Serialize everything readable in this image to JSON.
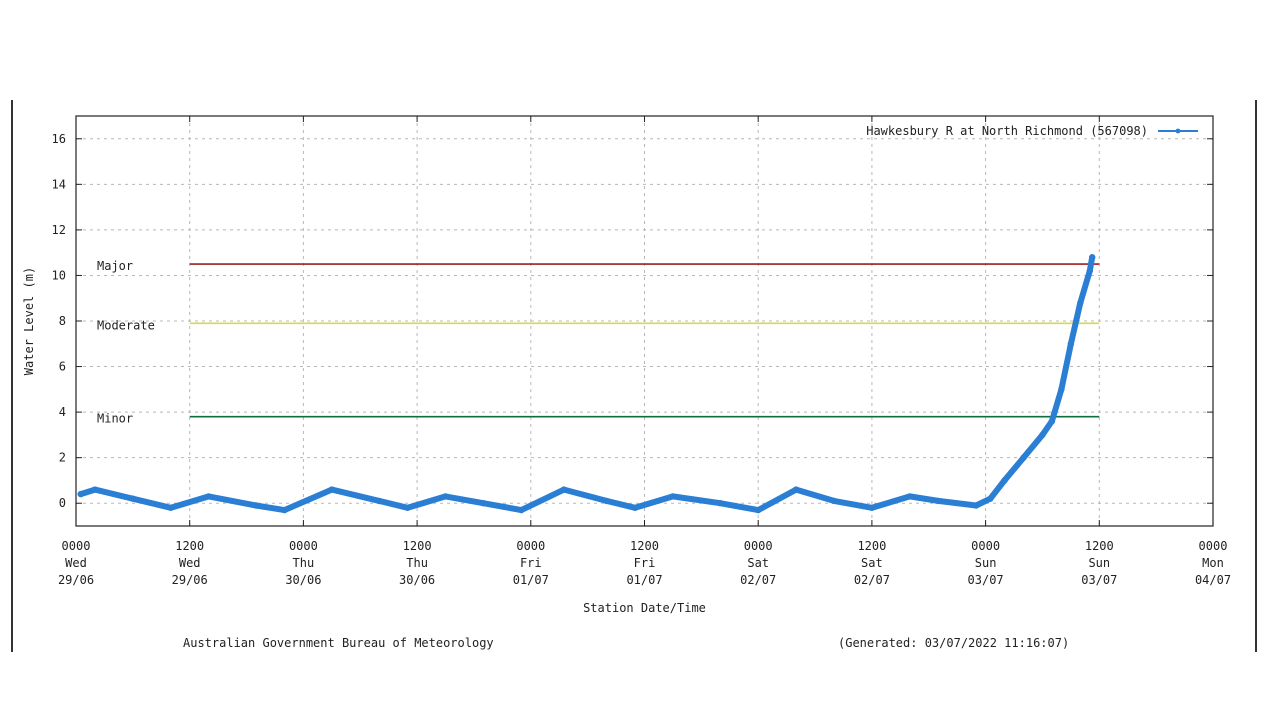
{
  "footer": {
    "credit": "Australian Government Bureau of Meteorology",
    "generated": "(Generated: 03/07/2022 11:16:07)"
  },
  "colors": {
    "series": "#2a7fd4",
    "major": "#a01e1e",
    "moderate": "#d8d84a",
    "minor": "#0f6e3a",
    "grid": "#b8b8b8",
    "frame": "#222222"
  },
  "chart_data": {
    "type": "line",
    "title": "",
    "xlabel": "Station Date/Time",
    "ylabel": "Water Level (m)",
    "ylim": [
      -1,
      17
    ],
    "y_ticks": [
      0,
      2,
      4,
      6,
      8,
      10,
      12,
      14,
      16
    ],
    "x_range": [
      "2022-06-29 00:00",
      "2022-07-04 00:00"
    ],
    "x_ticks": [
      {
        "time": "2022-06-29 00:00",
        "lines": [
          "0000",
          "Wed",
          "29/06"
        ]
      },
      {
        "time": "2022-06-29 12:00",
        "lines": [
          "1200",
          "Wed",
          "29/06"
        ]
      },
      {
        "time": "2022-06-30 00:00",
        "lines": [
          "0000",
          "Thu",
          "30/06"
        ]
      },
      {
        "time": "2022-06-30 12:00",
        "lines": [
          "1200",
          "Thu",
          "30/06"
        ]
      },
      {
        "time": "2022-07-01 00:00",
        "lines": [
          "0000",
          "Fri",
          "01/07"
        ]
      },
      {
        "time": "2022-07-01 12:00",
        "lines": [
          "1200",
          "Fri",
          "01/07"
        ]
      },
      {
        "time": "2022-07-02 00:00",
        "lines": [
          "0000",
          "Sat",
          "02/07"
        ]
      },
      {
        "time": "2022-07-02 12:00",
        "lines": [
          "1200",
          "Sat",
          "02/07"
        ]
      },
      {
        "time": "2022-07-03 00:00",
        "lines": [
          "0000",
          "Sun",
          "03/07"
        ]
      },
      {
        "time": "2022-07-03 12:00",
        "lines": [
          "1200",
          "Sun",
          "03/07"
        ]
      },
      {
        "time": "2022-07-04 00:00",
        "lines": [
          "0000",
          "Mon",
          "04/07"
        ]
      }
    ],
    "legend_position": "top-right",
    "grid": true,
    "thresholds": [
      {
        "label": "Major",
        "value": 10.5,
        "from": "2022-06-29 12:00",
        "to": "2022-07-03 12:00",
        "color": "#a01e1e"
      },
      {
        "label": "Moderate",
        "value": 7.9,
        "from": "2022-06-29 12:00",
        "to": "2022-07-03 12:00",
        "color": "#d8d84a"
      },
      {
        "label": "Minor",
        "value": 3.8,
        "from": "2022-06-29 12:00",
        "to": "2022-07-03 12:00",
        "color": "#0f6e3a"
      }
    ],
    "series": [
      {
        "name": "Hawkesbury R at North Richmond (567098)",
        "color": "#2a7fd4",
        "points": [
          {
            "x": "2022-06-29 00:30",
            "y": 0.4
          },
          {
            "x": "2022-06-29 02:00",
            "y": 0.6
          },
          {
            "x": "2022-06-29 06:00",
            "y": 0.2
          },
          {
            "x": "2022-06-29 10:00",
            "y": -0.2
          },
          {
            "x": "2022-06-29 14:00",
            "y": 0.3
          },
          {
            "x": "2022-06-29 19:00",
            "y": -0.1
          },
          {
            "x": "2022-06-29 22:00",
            "y": -0.3
          },
          {
            "x": "2022-06-30 03:00",
            "y": 0.6
          },
          {
            "x": "2022-06-30 08:00",
            "y": 0.1
          },
          {
            "x": "2022-06-30 11:00",
            "y": -0.2
          },
          {
            "x": "2022-06-30 15:00",
            "y": 0.3
          },
          {
            "x": "2022-06-30 19:00",
            "y": 0.0
          },
          {
            "x": "2022-06-30 23:00",
            "y": -0.3
          },
          {
            "x": "2022-07-01 03:30",
            "y": 0.6
          },
          {
            "x": "2022-07-01 08:00",
            "y": 0.1
          },
          {
            "x": "2022-07-01 11:00",
            "y": -0.2
          },
          {
            "x": "2022-07-01 15:00",
            "y": 0.3
          },
          {
            "x": "2022-07-01 20:00",
            "y": 0.0
          },
          {
            "x": "2022-07-02 00:00",
            "y": -0.3
          },
          {
            "x": "2022-07-02 04:00",
            "y": 0.6
          },
          {
            "x": "2022-07-02 08:00",
            "y": 0.1
          },
          {
            "x": "2022-07-02 12:00",
            "y": -0.2
          },
          {
            "x": "2022-07-02 16:00",
            "y": 0.3
          },
          {
            "x": "2022-07-02 19:00",
            "y": 0.1
          },
          {
            "x": "2022-07-02 23:00",
            "y": -0.1
          },
          {
            "x": "2022-07-03 00:30",
            "y": 0.2
          },
          {
            "x": "2022-07-03 02:00",
            "y": 1.0
          },
          {
            "x": "2022-07-03 04:00",
            "y": 2.0
          },
          {
            "x": "2022-07-03 06:00",
            "y": 3.0
          },
          {
            "x": "2022-07-03 07:00",
            "y": 3.6
          },
          {
            "x": "2022-07-03 08:00",
            "y": 5.0
          },
          {
            "x": "2022-07-03 09:00",
            "y": 7.0
          },
          {
            "x": "2022-07-03 10:00",
            "y": 8.8
          },
          {
            "x": "2022-07-03 11:00",
            "y": 10.2
          },
          {
            "x": "2022-07-03 11:15",
            "y": 10.8
          }
        ]
      }
    ]
  }
}
